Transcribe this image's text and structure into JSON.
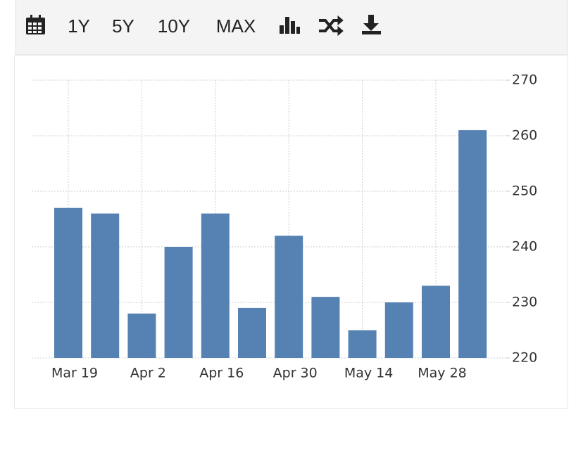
{
  "toolbar": {
    "buttons": [
      "1Y",
      "5Y",
      "10Y",
      "MAX"
    ]
  },
  "chart_data": {
    "type": "bar",
    "categories": [
      "Mar 19",
      null,
      "Apr 2",
      null,
      "Apr 16",
      null,
      "Apr 30",
      null,
      "May 14",
      null,
      "May 28",
      null
    ],
    "values": [
      247,
      246,
      228,
      240,
      246,
      229,
      242,
      231,
      225,
      230,
      233,
      261
    ],
    "color": "#5581b3",
    "ylim": [
      220,
      270
    ],
    "yticks": [
      220,
      230,
      240,
      250,
      260,
      270
    ],
    "grid": true
  }
}
